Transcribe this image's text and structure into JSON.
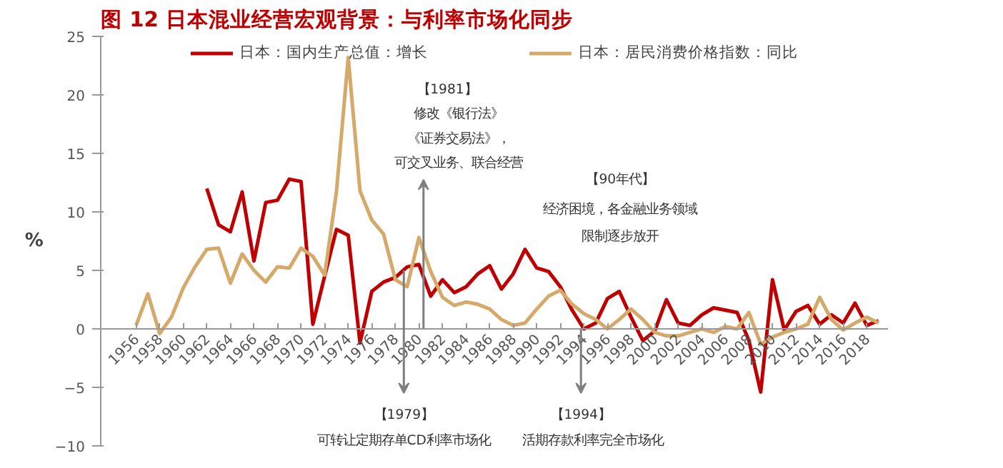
{
  "chart_data": {
    "type": "line",
    "title": "图 12   日本混业经营宏观背景：与利率市场化同步",
    "ylabel": "%",
    "legend": "top",
    "grid": false,
    "marker": "none",
    "line_style": "solid",
    "xlim": [
      1953,
      2019.8
    ],
    "xticks": [
      1956,
      1958,
      1960,
      1962,
      1964,
      1966,
      1968,
      1970,
      1972,
      1974,
      1976,
      1978,
      1980,
      1982,
      1984,
      1986,
      1988,
      1990,
      1992,
      1994,
      1996,
      1998,
      2000,
      2002,
      2004,
      2006,
      2008,
      2010,
      2012,
      2014,
      2016,
      2018
    ],
    "ylim": [
      -10,
      25
    ],
    "yticks": [
      -10,
      -5,
      0,
      5,
      10,
      15,
      20,
      25
    ],
    "series": [
      {
        "name": "日本：国内生产总值：增长",
        "color": "#c00000",
        "x": [
          1962,
          1963,
          1964,
          1965,
          1966,
          1967,
          1968,
          1969,
          1970,
          1971,
          1972,
          1973,
          1974,
          1975,
          1976,
          1977,
          1978,
          1979,
          1980,
          1981,
          1982,
          1983,
          1984,
          1985,
          1986,
          1987,
          1988,
          1989,
          1990,
          1991,
          1992,
          1993,
          1994,
          1995,
          1996,
          1997,
          1998,
          1999,
          2000,
          2001,
          2002,
          2003,
          2004,
          2005,
          2006,
          2007,
          2008,
          2009,
          2010,
          2011,
          2012,
          2013,
          2014,
          2015,
          2016,
          2017,
          2018,
          2019
        ],
        "values": [
          12.0,
          8.9,
          8.3,
          11.7,
          5.8,
          10.8,
          11.0,
          12.8,
          12.6,
          0.4,
          4.5,
          8.5,
          8.0,
          -1.2,
          3.2,
          4.0,
          4.4,
          5.3,
          5.5,
          2.8,
          4.2,
          3.1,
          3.6,
          4.7,
          5.4,
          3.4,
          4.7,
          6.8,
          5.2,
          4.9,
          3.6,
          1.6,
          0.0,
          0.5,
          2.6,
          3.2,
          1.0,
          -1.0,
          -0.2,
          2.5,
          0.5,
          0.3,
          1.2,
          1.8,
          1.6,
          1.4,
          -1.0,
          -5.4,
          4.2,
          -0.1,
          1.5,
          2.0,
          0.4,
          1.2,
          0.5,
          2.2,
          0.3,
          0.7
        ]
      },
      {
        "name": "日本：居民消费价格指数：同比",
        "color": "#d4a96a",
        "x": [
          1956,
          1957,
          1958,
          1959,
          1960,
          1961,
          1962,
          1963,
          1964,
          1965,
          1966,
          1967,
          1968,
          1969,
          1970,
          1971,
          1972,
          1973,
          1974,
          1975,
          1976,
          1977,
          1978,
          1979,
          1980,
          1981,
          1982,
          1983,
          1984,
          1985,
          1986,
          1987,
          1988,
          1989,
          1990,
          1991,
          1992,
          1993,
          1994,
          1995,
          1996,
          1997,
          1998,
          1999,
          2000,
          2001,
          2002,
          2003,
          2004,
          2005,
          2006,
          2007,
          2008,
          2009,
          2010,
          2011,
          2012,
          2013,
          2014,
          2015,
          2016,
          2017,
          2018,
          2019
        ],
        "values": [
          0.3,
          3.0,
          -0.4,
          1.0,
          3.5,
          5.3,
          6.8,
          6.9,
          3.9,
          6.4,
          5.0,
          4.0,
          5.3,
          5.2,
          6.9,
          6.2,
          4.6,
          11.7,
          23.2,
          11.8,
          9.3,
          8.1,
          4.2,
          3.6,
          7.8,
          4.9,
          2.7,
          2.0,
          2.3,
          2.1,
          1.7,
          0.8,
          0.3,
          0.5,
          1.7,
          2.8,
          3.3,
          2.1,
          1.3,
          0.8,
          0.0,
          0.8,
          1.7,
          0.8,
          -0.3,
          -0.6,
          -0.6,
          -0.3,
          0.0,
          -0.3,
          0.2,
          0.0,
          1.4,
          -1.3,
          -0.7,
          -0.3,
          0.0,
          0.4,
          2.7,
          0.8,
          -0.1,
          0.5,
          1.0,
          0.5
        ]
      }
    ],
    "annotations": [
      "【1981】",
      "修改《银行法》",
      "《证券交易法》，",
      "可交叉业务、联合经营",
      "【90年代】",
      "经济困境，各金融业务领域",
      "限制逐步放开",
      "【1979】",
      "可转让定期存单CD利率市场化",
      "【1994】",
      "活期存款利率完全市场化"
    ]
  }
}
